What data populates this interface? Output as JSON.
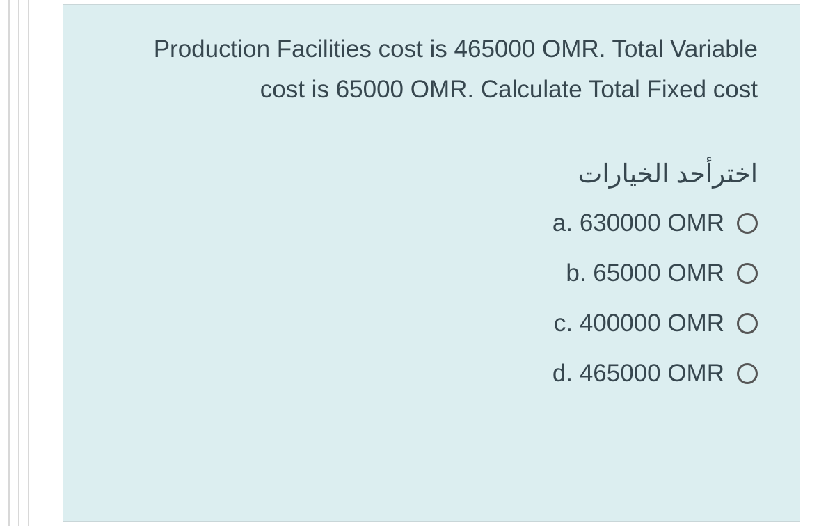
{
  "question": {
    "text": "Production Facilities cost is 465000 OMR. Total Variable cost is 65000 OMR. Calculate Total Fixed cost",
    "text_color": "#37474f",
    "font_size": 35
  },
  "instruction": {
    "text": "اخترأحد الخيارات",
    "text_color": "#37474f",
    "font_size": 37
  },
  "options": [
    {
      "letter": "a",
      "value": "630000 OMR"
    },
    {
      "letter": "b",
      "value": "65000 OMR"
    },
    {
      "letter": "c",
      "value": "400000 OMR"
    },
    {
      "letter": "d",
      "value": "465000 OMR"
    }
  ],
  "card": {
    "background_color": "#dceef0",
    "border_color": "#c9d6d8"
  },
  "radio": {
    "border_color": "#565656",
    "size": 30
  },
  "option_labels": {
    "a": "a. 630000 OMR",
    "b": "b. 65000 OMR",
    "c": "c. 400000 OMR",
    "d": "d. 465000 OMR"
  }
}
